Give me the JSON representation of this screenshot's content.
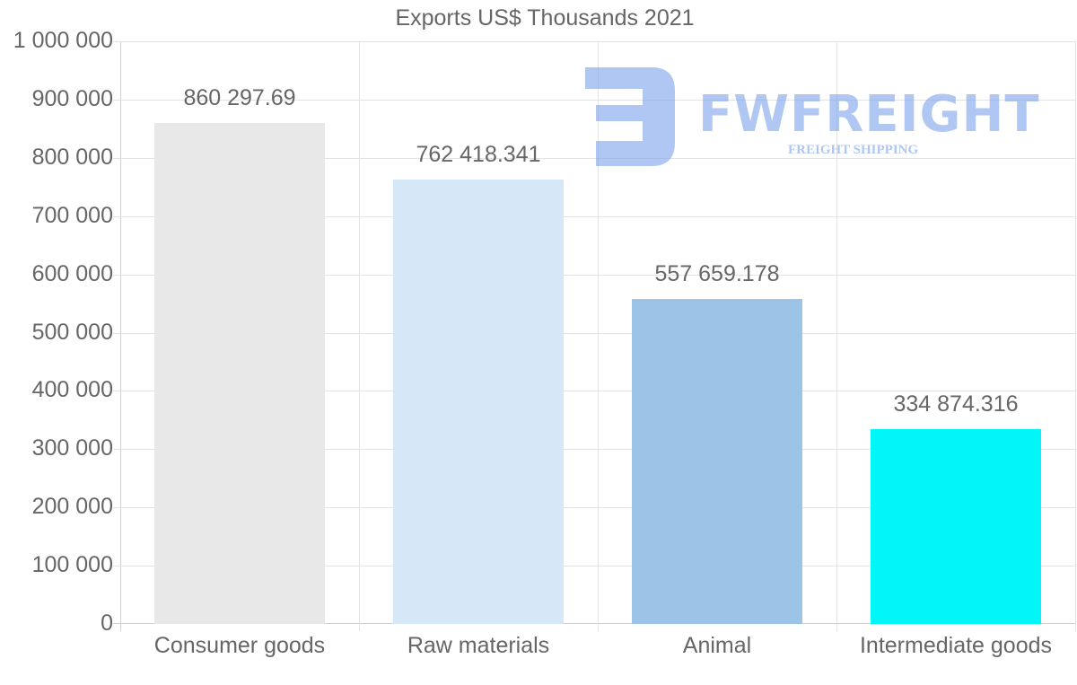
{
  "chart_data": {
    "type": "bar",
    "title": "Exports US$ Thousands 2021",
    "categories": [
      "Consumer goods",
      "Raw materials",
      "Animal",
      "Intermediate goods"
    ],
    "values": [
      860297.69,
      762418.341,
      557659.178,
      334874.316
    ],
    "value_labels": [
      "860 297.69",
      "762 418.341",
      "557 659.178",
      "334 874.316"
    ],
    "colors": [
      "#e8e8e8",
      "#d6e8f8",
      "#9cc4e7",
      "#00f6f7"
    ],
    "xlabel": "",
    "ylabel": "",
    "ylim": [
      0,
      1000000
    ],
    "yticks": [
      0,
      100000,
      200000,
      300000,
      400000,
      500000,
      600000,
      700000,
      800000,
      900000,
      1000000
    ],
    "ytick_labels": [
      "0",
      "100 000",
      "200 000",
      "300 000",
      "400 000",
      "500 000",
      "600 000",
      "700 000",
      "800 000",
      "900 000",
      "1 000 000"
    ],
    "grid": true,
    "legend": "none"
  },
  "watermark": {
    "brand": "FWFREIGHT",
    "tagline": "FREIGHT SHIPPING",
    "icon": "fwfreight-logo-icon",
    "color": "#6f9be8"
  }
}
